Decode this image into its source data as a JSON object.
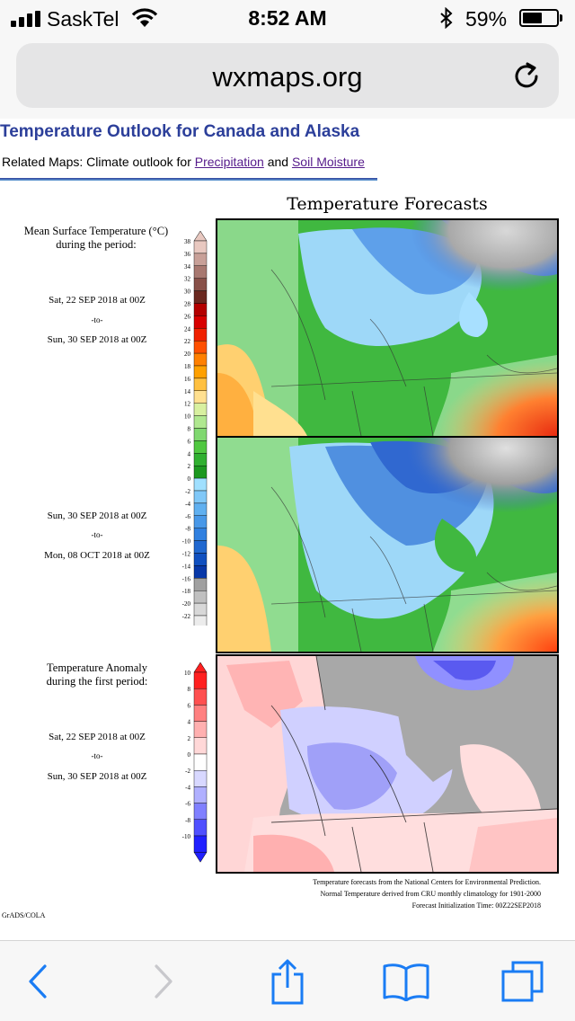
{
  "status_bar": {
    "carrier": "SaskTel",
    "time": "8:52 AM",
    "battery_percent": "59%",
    "battery_level": 0.59,
    "signal_bars": 4
  },
  "browser": {
    "url": "wxmaps.org"
  },
  "page": {
    "title": "Temperature Outlook for Canada and Alaska",
    "related_prefix": "Related Maps: Climate outlook for ",
    "related_link1": "Precipitation",
    "related_and": " and ",
    "related_link2": "Soil Moisture"
  },
  "figure": {
    "title": "Temperature Forecasts",
    "panel1": {
      "heading": "Mean Surface Temperature (°C)",
      "heading2": "during the period:",
      "start": "Sat, 22 SEP 2018 at 00Z",
      "to": "-to-",
      "end": "Sun, 30 SEP 2018 at 00Z"
    },
    "panel2": {
      "start": "Sun, 30 SEP 2018 at 00Z",
      "to": "-to-",
      "end": "Mon, 08 OCT 2018 at 00Z"
    },
    "panel3": {
      "heading": "Temperature Anomaly",
      "heading2": "during the first period:",
      "start": "Sat, 22 SEP 2018 at 00Z",
      "to": "-to-",
      "end": "Sun, 30 SEP 2018 at 00Z"
    },
    "temp_scale": [
      "38",
      "36",
      "34",
      "32",
      "30",
      "28",
      "26",
      "24",
      "22",
      "20",
      "18",
      "16",
      "14",
      "12",
      "10",
      "8",
      "6",
      "4",
      "2",
      "0",
      "-2",
      "-4",
      "-6",
      "-8",
      "-10",
      "-12",
      "-14",
      "-16",
      "-18",
      "-20",
      "-22"
    ],
    "temp_colors": [
      "#e8c8c0",
      "#c8a098",
      "#a87870",
      "#885048",
      "#6a2820",
      "#b40000",
      "#d80000",
      "#f02000",
      "#ff5000",
      "#ff8000",
      "#ffa000",
      "#ffc040",
      "#ffe090",
      "#d8f0a0",
      "#b0e890",
      "#80d870",
      "#50c840",
      "#30b030",
      "#1c9820",
      "#a0e0ff",
      "#80c8f8",
      "#60b0f0",
      "#4898e8",
      "#3080e0",
      "#2068d0",
      "#1050c0",
      "#0838a8",
      "#a0a0a0",
      "#c0c0c0",
      "#d8d8d8",
      "#ececec"
    ],
    "anom_scale": [
      "10",
      "8",
      "6",
      "4",
      "2",
      "0",
      "-2",
      "-4",
      "-6",
      "-8",
      "-10"
    ],
    "anom_colors": [
      "#ff2020",
      "#ff5050",
      "#ff8080",
      "#ffb0b0",
      "#ffd8d8",
      "#ffffff",
      "#d8d8ff",
      "#b0b0ff",
      "#8080ff",
      "#5050ff",
      "#2020ff"
    ],
    "footnote1": "Temperature forecasts from the National Centers for Environmental Prediction.",
    "footnote2": "Normal Temperature derived from CRU monthly climatology for 1901-2000",
    "footnote3": "Forecast Initialization Time: 00Z22SEP2018",
    "credit": "GrADS/COLA"
  }
}
